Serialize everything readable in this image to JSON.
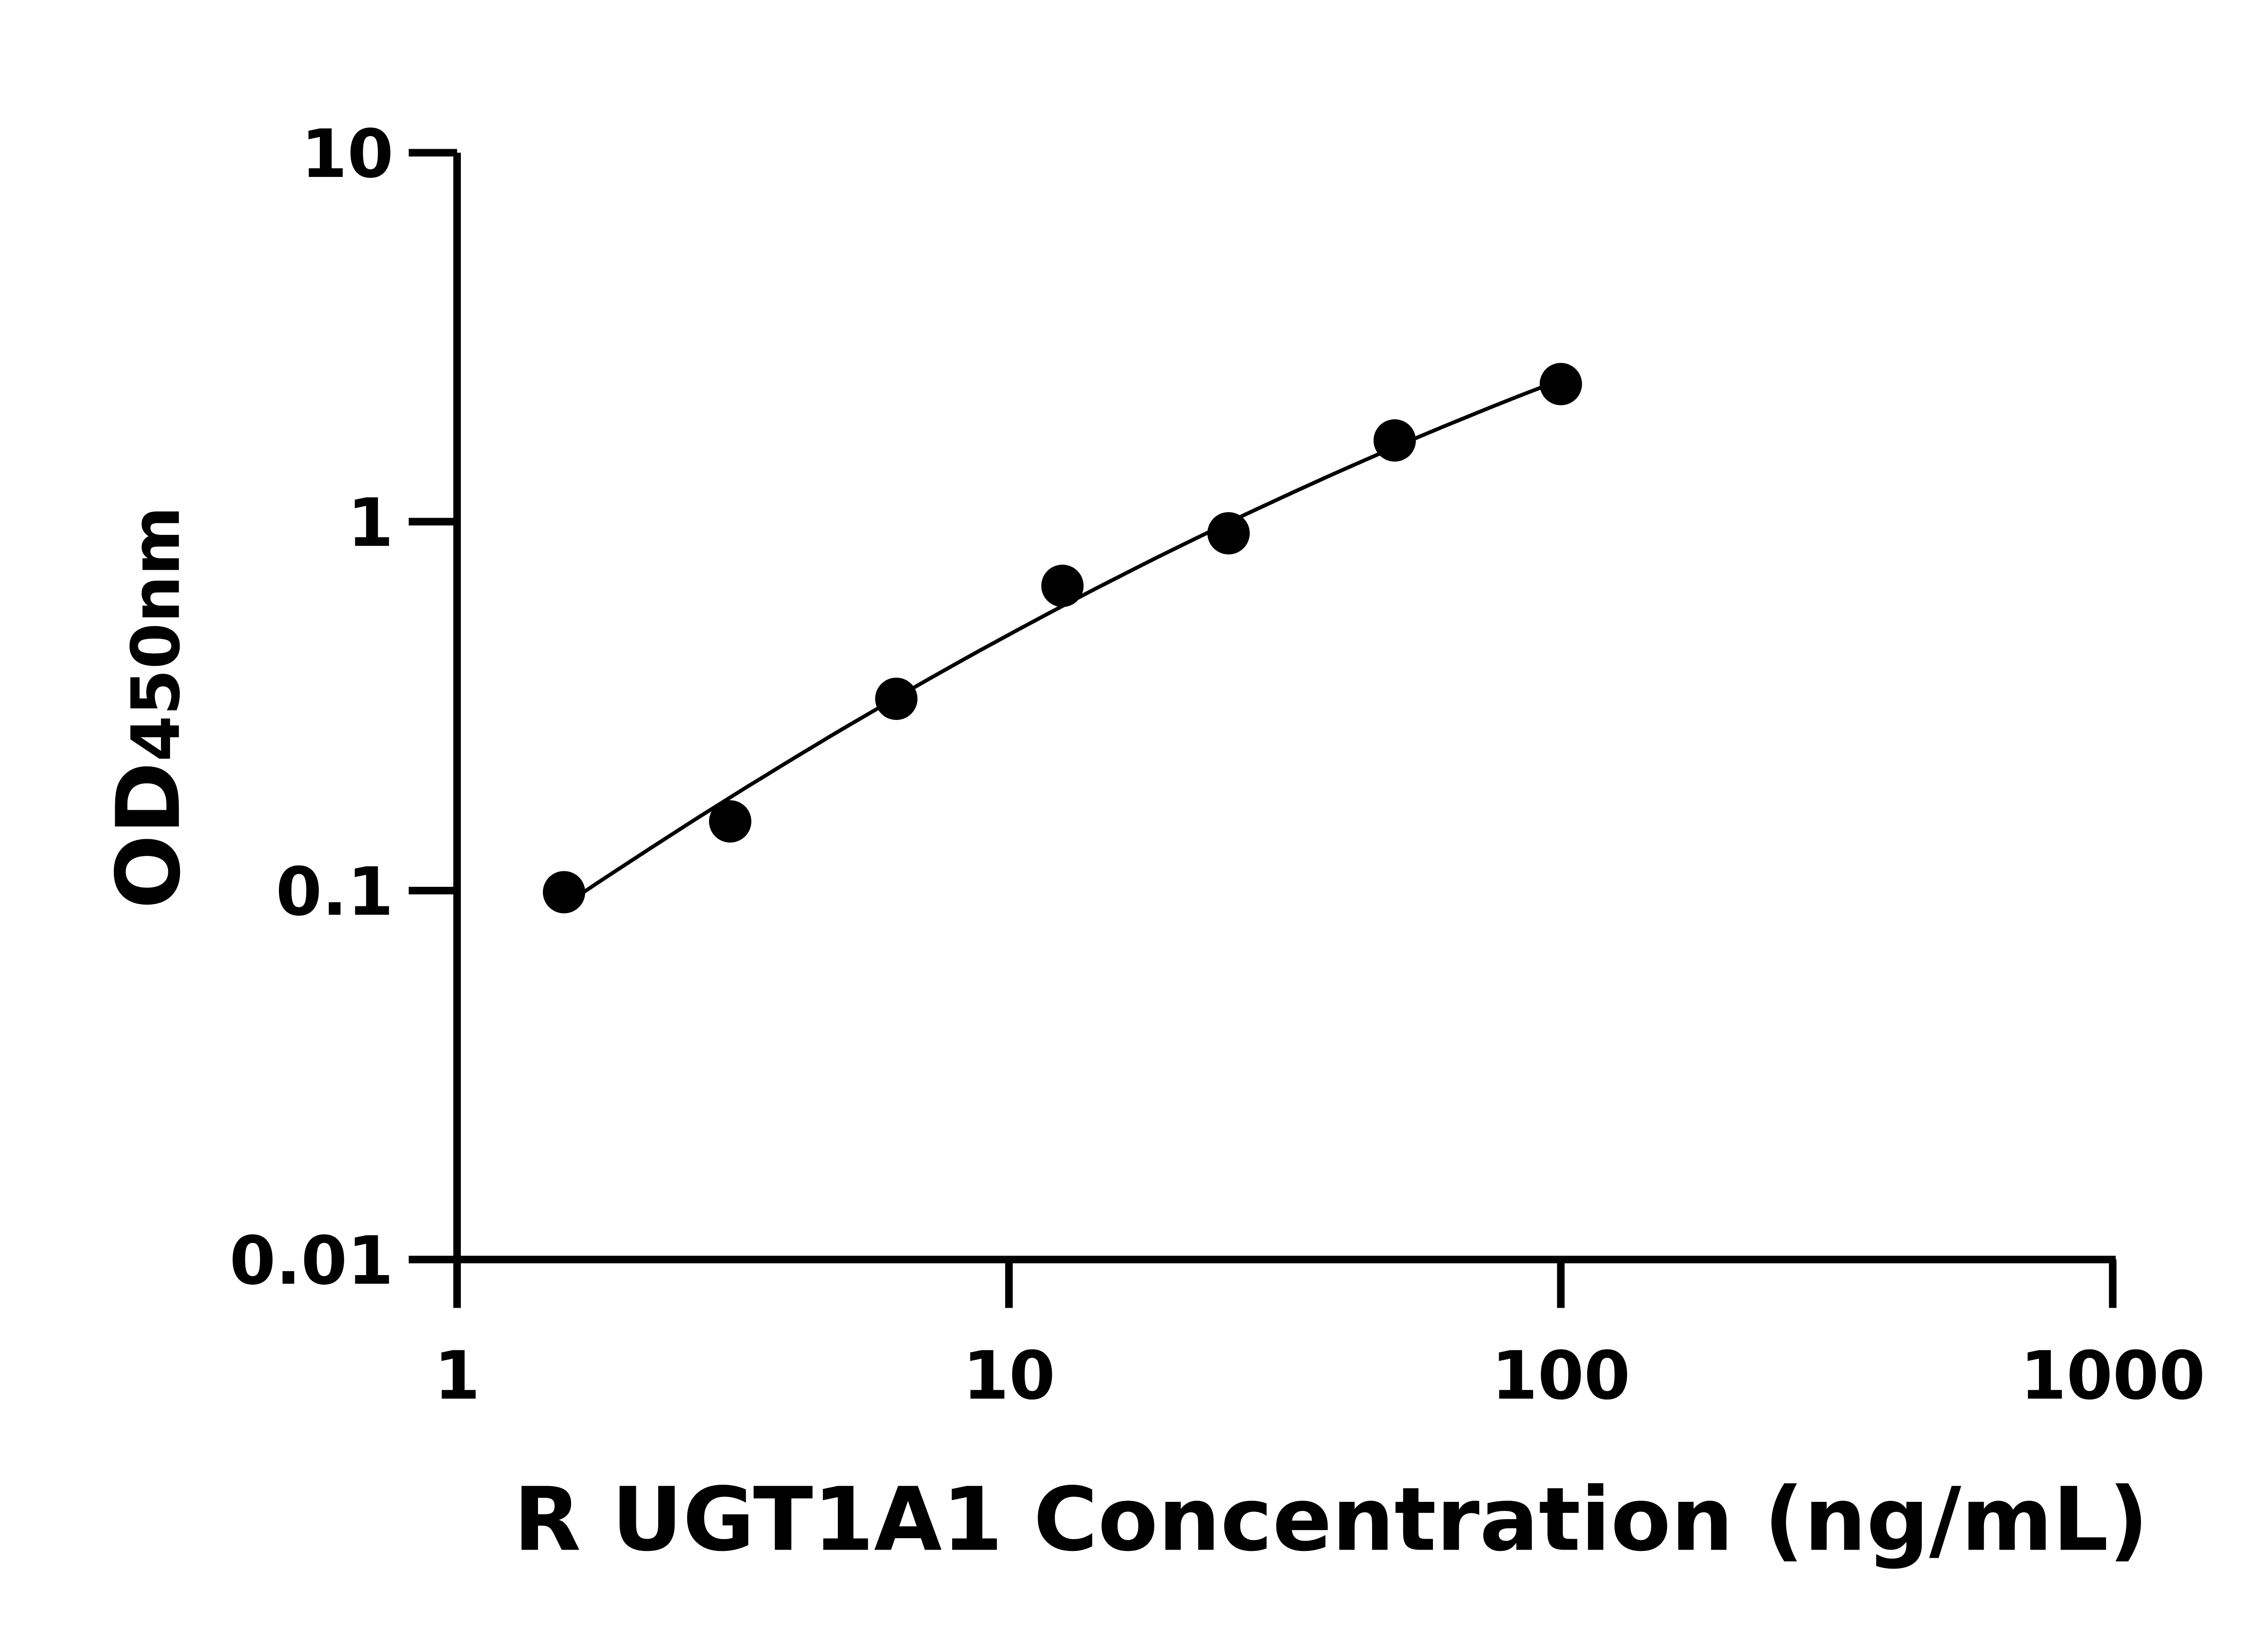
{
  "chart_data": {
    "type": "scatter",
    "title": "",
    "xlabel": "R UGT1A1 Concentration (ng/mL)",
    "ylabel_main": "OD",
    "ylabel_sub": "450nm",
    "xscale": "log",
    "yscale": "log",
    "xlim": [
      1,
      1000
    ],
    "ylim": [
      0.01,
      10
    ],
    "xticks": [
      "1",
      "10",
      "100",
      "1000"
    ],
    "yticks": [
      "0.01",
      "0.1",
      "1",
      "10"
    ],
    "grid": false,
    "legend": "none",
    "marker_color": "#000000",
    "line_color": "#000000",
    "fit_line": true,
    "x": [
      1.5625,
      3.125,
      6.25,
      12.5,
      25,
      50,
      100
    ],
    "y": [
      0.099,
      0.154,
      0.331,
      0.67,
      0.93,
      1.66,
      2.36
    ]
  }
}
